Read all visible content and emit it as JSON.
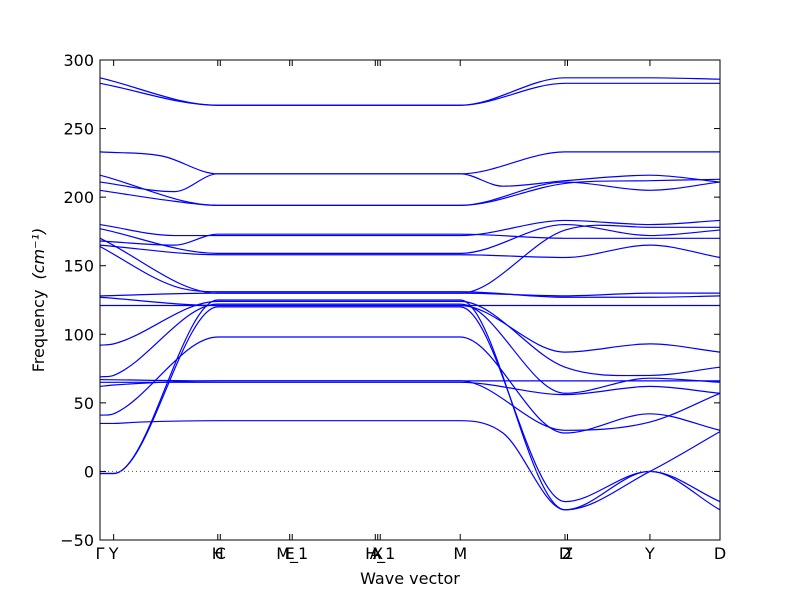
{
  "chart_data": {
    "type": "line",
    "title": "",
    "xlabel": "Wave vector",
    "ylabel": "Frequency",
    "ylabel_unit": "(cm⁻¹)",
    "ylim": [
      -50,
      300
    ],
    "yticks": [
      -50,
      0,
      50,
      100,
      150,
      200,
      250,
      300
    ],
    "grid": false,
    "legend": "none",
    "line_color": "#0000ff",
    "zero_line": {
      "y": 0,
      "style": "dotted",
      "color": "#555555"
    },
    "xlim": [
      0,
      1
    ],
    "xticks": [
      {
        "x": 0.0,
        "label": "Γ"
      },
      {
        "x": 0.022,
        "label": "Y"
      },
      {
        "x": 0.19,
        "label": "H"
      },
      {
        "x": 0.194,
        "label": "C"
      },
      {
        "x": 0.306,
        "label": "E"
      },
      {
        "x": 0.31,
        "label": "M_1"
      },
      {
        "x": 0.444,
        "label": "A"
      },
      {
        "x": 0.448,
        "label": "X"
      },
      {
        "x": 0.452,
        "label": "H_1"
      },
      {
        "x": 0.581,
        "label": "M"
      },
      {
        "x": 0.75,
        "label": "D"
      },
      {
        "x": 0.754,
        "label": "Z"
      },
      {
        "x": 0.887,
        "label": "Y"
      },
      {
        "x": 1.0,
        "label": "D"
      }
    ],
    "series": [
      {
        "points": [
          [
            0,
            -1.5
          ],
          [
            0.022,
            -1.5
          ],
          [
            0.19,
            125
          ],
          [
            0.581,
            125
          ],
          [
            0.75,
            -28
          ],
          [
            0.887,
            0
          ],
          [
            1.0,
            29
          ]
        ]
      },
      {
        "points": [
          [
            0,
            -1.5
          ],
          [
            0.022,
            -1.5
          ],
          [
            0.19,
            120
          ],
          [
            0.581,
            120
          ],
          [
            0.75,
            -22
          ],
          [
            0.887,
            0
          ],
          [
            1.0,
            -22
          ]
        ]
      },
      {
        "points": [
          [
            0,
            35
          ],
          [
            0.022,
            35
          ],
          [
            0.065,
            36
          ],
          [
            0.19,
            37
          ],
          [
            0.581,
            37
          ],
          [
            0.65,
            28
          ],
          [
            0.75,
            -28
          ],
          [
            0.887,
            0
          ],
          [
            1.0,
            -28
          ]
        ]
      },
      {
        "points": [
          [
            0,
            41
          ],
          [
            0.022,
            42
          ],
          [
            0.19,
            98
          ],
          [
            0.581,
            98
          ],
          [
            0.75,
            28
          ],
          [
            0.887,
            42
          ],
          [
            1.0,
            30
          ]
        ]
      },
      {
        "points": [
          [
            0,
            62
          ],
          [
            0.022,
            63
          ],
          [
            0.19,
            66
          ],
          [
            0.581,
            66
          ],
          [
            0.75,
            30
          ],
          [
            0.887,
            36
          ],
          [
            1.0,
            57
          ]
        ]
      },
      {
        "points": [
          [
            0,
            65
          ],
          [
            0.022,
            65
          ],
          [
            0.19,
            65
          ],
          [
            0.581,
            65
          ],
          [
            0.75,
            56
          ],
          [
            0.887,
            62
          ],
          [
            1.0,
            57
          ]
        ]
      },
      {
        "points": [
          [
            0,
            67
          ],
          [
            0.19,
            66
          ],
          [
            0.581,
            66
          ],
          [
            0.75,
            66
          ],
          [
            0.887,
            66
          ],
          [
            1.0,
            66
          ]
        ]
      },
      {
        "points": [
          [
            0,
            69
          ],
          [
            0.022,
            70
          ],
          [
            0.19,
            122
          ],
          [
            0.581,
            122
          ],
          [
            0.75,
            57
          ],
          [
            0.887,
            68
          ],
          [
            1.0,
            65
          ]
        ]
      },
      {
        "points": [
          [
            0,
            92
          ],
          [
            0.022,
            93
          ],
          [
            0.19,
            124
          ],
          [
            0.581,
            124
          ],
          [
            0.75,
            76
          ],
          [
            0.887,
            70
          ],
          [
            1.0,
            76
          ]
        ]
      },
      {
        "points": [
          [
            0,
            121
          ],
          [
            0.19,
            121
          ],
          [
            0.581,
            121
          ],
          [
            0.75,
            121
          ],
          [
            0.887,
            121
          ],
          [
            1.0,
            121
          ]
        ]
      },
      {
        "points": [
          [
            0,
            127
          ],
          [
            0.19,
            121
          ],
          [
            0.581,
            121
          ],
          [
            0.75,
            87
          ],
          [
            0.887,
            93
          ],
          [
            1.0,
            87
          ]
        ]
      },
      {
        "points": [
          [
            0,
            128
          ],
          [
            0.19,
            130
          ],
          [
            0.581,
            130
          ],
          [
            0.75,
            128
          ],
          [
            0.887,
            130
          ],
          [
            1.0,
            130
          ]
        ]
      },
      {
        "points": [
          [
            0,
            164
          ],
          [
            0.12,
            135
          ],
          [
            0.19,
            131
          ],
          [
            0.581,
            131
          ],
          [
            0.75,
            127
          ],
          [
            0.887,
            127
          ],
          [
            1.0,
            128
          ]
        ]
      },
      {
        "points": [
          [
            0,
            165
          ],
          [
            0.19,
            158
          ],
          [
            0.581,
            158
          ],
          [
            0.75,
            156
          ],
          [
            0.887,
            165
          ],
          [
            1.0,
            156
          ]
        ]
      },
      {
        "points": [
          [
            0,
            168
          ],
          [
            0.12,
            165
          ],
          [
            0.19,
            173
          ],
          [
            0.581,
            173
          ],
          [
            0.75,
            170
          ],
          [
            0.887,
            170
          ],
          [
            1.0,
            170
          ]
        ]
      },
      {
        "points": [
          [
            0,
            170
          ],
          [
            0.19,
            130
          ],
          [
            0.581,
            130
          ],
          [
            0.75,
            176
          ],
          [
            0.887,
            178
          ],
          [
            1.0,
            178
          ]
        ]
      },
      {
        "points": [
          [
            0,
            177
          ],
          [
            0.19,
            159
          ],
          [
            0.581,
            159
          ],
          [
            0.75,
            180
          ],
          [
            0.887,
            172
          ],
          [
            1.0,
            176
          ]
        ]
      },
      {
        "points": [
          [
            0,
            180
          ],
          [
            0.12,
            172
          ],
          [
            0.19,
            172
          ],
          [
            0.581,
            172
          ],
          [
            0.75,
            183
          ],
          [
            0.887,
            180
          ],
          [
            1.0,
            183
          ]
        ]
      },
      {
        "points": [
          [
            0,
            205
          ],
          [
            0.12,
            197
          ],
          [
            0.19,
            194
          ],
          [
            0.581,
            194
          ],
          [
            0.75,
            211
          ],
          [
            0.887,
            205
          ],
          [
            1.0,
            211
          ]
        ]
      },
      {
        "points": [
          [
            0,
            211
          ],
          [
            0.12,
            204
          ],
          [
            0.19,
            217
          ],
          [
            0.581,
            217
          ],
          [
            0.65,
            208
          ],
          [
            0.75,
            212
          ],
          [
            0.887,
            216
          ],
          [
            1.0,
            211
          ]
        ]
      },
      {
        "points": [
          [
            0,
            216
          ],
          [
            0.19,
            194
          ],
          [
            0.581,
            194
          ],
          [
            0.75,
            210
          ],
          [
            0.887,
            212
          ],
          [
            1.0,
            213
          ]
        ]
      },
      {
        "points": [
          [
            0,
            233
          ],
          [
            0.1,
            230
          ],
          [
            0.19,
            217
          ],
          [
            0.581,
            217
          ],
          [
            0.75,
            233
          ],
          [
            0.887,
            233
          ],
          [
            1.0,
            233
          ]
        ]
      },
      {
        "points": [
          [
            0,
            283
          ],
          [
            0.19,
            267
          ],
          [
            0.581,
            267
          ],
          [
            0.75,
            283
          ],
          [
            0.887,
            283
          ],
          [
            1.0,
            283
          ]
        ]
      },
      {
        "points": [
          [
            0,
            287
          ],
          [
            0.19,
            267
          ],
          [
            0.581,
            267
          ],
          [
            0.75,
            287
          ],
          [
            0.887,
            287
          ],
          [
            1.0,
            286
          ]
        ]
      }
    ]
  }
}
